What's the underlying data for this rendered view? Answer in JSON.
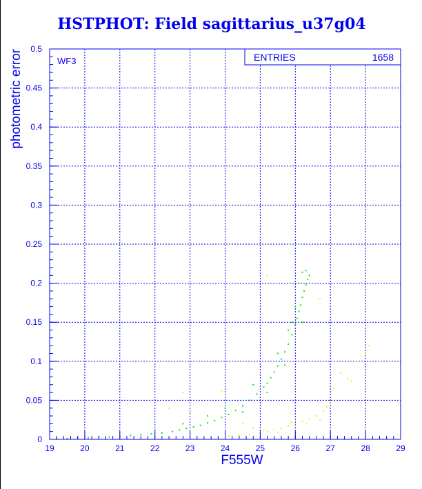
{
  "chart_data": {
    "type": "scatter",
    "title": "HSTPHOT: Field sagittarius_u37g04",
    "xlabel": "F555W",
    "ylabel": "photometric error",
    "xlim": [
      19,
      29
    ],
    "ylim": [
      0,
      0.5
    ],
    "xticks": [
      "19",
      "20",
      "21",
      "22",
      "23",
      "24",
      "25",
      "26",
      "27",
      "28",
      "29"
    ],
    "yticks": [
      "0",
      "0.05",
      "0.1",
      "0.15",
      "0.2",
      "0.25",
      "0.3",
      "0.35",
      "0.4",
      "0.45",
      "0.5"
    ],
    "grid": true,
    "annotation": "WF3",
    "stats": {
      "label": "ENTRIES",
      "value": "1658"
    },
    "series": [
      {
        "name": "green",
        "color": "#00ee00",
        "points": [
          [
            19.2,
            0.001
          ],
          [
            19.5,
            0.001
          ],
          [
            19.8,
            0.002
          ],
          [
            20.1,
            0.002
          ],
          [
            20.4,
            0.003
          ],
          [
            20.7,
            0.003
          ],
          [
            21.0,
            0.004
          ],
          [
            21.3,
            0.005
          ],
          [
            21.6,
            0.006
          ],
          [
            21.9,
            0.007
          ],
          [
            22.2,
            0.008
          ],
          [
            22.5,
            0.01
          ],
          [
            22.7,
            0.012
          ],
          [
            22.9,
            0.014
          ],
          [
            23.1,
            0.016
          ],
          [
            23.3,
            0.018
          ],
          [
            23.5,
            0.021
          ],
          [
            23.7,
            0.024
          ],
          [
            23.9,
            0.028
          ],
          [
            24.1,
            0.032
          ],
          [
            24.3,
            0.037
          ],
          [
            24.5,
            0.043
          ],
          [
            24.7,
            0.05
          ],
          [
            24.9,
            0.058
          ],
          [
            25.1,
            0.067
          ],
          [
            25.2,
            0.072
          ],
          [
            25.3,
            0.079
          ],
          [
            25.4,
            0.086
          ],
          [
            25.5,
            0.094
          ],
          [
            25.6,
            0.103
          ],
          [
            25.7,
            0.112
          ],
          [
            25.8,
            0.122
          ],
          [
            25.9,
            0.134
          ],
          [
            26.0,
            0.147
          ],
          [
            26.05,
            0.155
          ],
          [
            26.1,
            0.164
          ],
          [
            26.15,
            0.172
          ],
          [
            26.2,
            0.182
          ],
          [
            26.25,
            0.19
          ],
          [
            26.3,
            0.198
          ],
          [
            26.35,
            0.205
          ],
          [
            26.4,
            0.21
          ],
          [
            26.2,
            0.214
          ],
          [
            26.3,
            0.216
          ],
          [
            26.1,
            0.2
          ],
          [
            25.9,
            0.15
          ],
          [
            25.7,
            0.095
          ],
          [
            25.5,
            0.11
          ],
          [
            25.2,
            0.06
          ],
          [
            24.8,
            0.07
          ],
          [
            24.5,
            0.035
          ],
          [
            24.0,
            0.04
          ],
          [
            23.5,
            0.03
          ],
          [
            22.8,
            0.02
          ],
          [
            22.0,
            0.012
          ],
          [
            26.0,
            0.17
          ],
          [
            25.8,
            0.14
          ],
          [
            26.2,
            0.15
          ]
        ]
      },
      {
        "name": "yellow",
        "color": "#eeee00",
        "points": [
          [
            24.1,
            0.004
          ],
          [
            24.4,
            0.005
          ],
          [
            24.7,
            0.006
          ],
          [
            25.0,
            0.008
          ],
          [
            25.2,
            0.01
          ],
          [
            25.4,
            0.012
          ],
          [
            25.6,
            0.014
          ],
          [
            25.8,
            0.017
          ],
          [
            26.0,
            0.02
          ],
          [
            26.2,
            0.023
          ],
          [
            26.4,
            0.026
          ],
          [
            26.6,
            0.03
          ],
          [
            26.8,
            0.036
          ],
          [
            26.9,
            0.042
          ],
          [
            27.0,
            0.048
          ],
          [
            25.1,
            0.012
          ],
          [
            25.5,
            0.009
          ],
          [
            25.9,
            0.022
          ],
          [
            26.3,
            0.02
          ],
          [
            26.7,
            0.025
          ],
          [
            27.3,
            0.085
          ],
          [
            27.5,
            0.078
          ],
          [
            27.6,
            0.075
          ],
          [
            27.8,
            0.1
          ],
          [
            28.0,
            0.11
          ],
          [
            28.1,
            0.12
          ],
          [
            22.4,
            0.04
          ],
          [
            23.0,
            0.035
          ],
          [
            22.8,
            0.06
          ],
          [
            23.9,
            0.062
          ],
          [
            24.5,
            0.02
          ],
          [
            25.2,
            0.21
          ],
          [
            26.7,
            0.18
          ],
          [
            24.8,
            0.015
          ],
          [
            27.1,
            0.065
          ]
        ]
      }
    ]
  }
}
